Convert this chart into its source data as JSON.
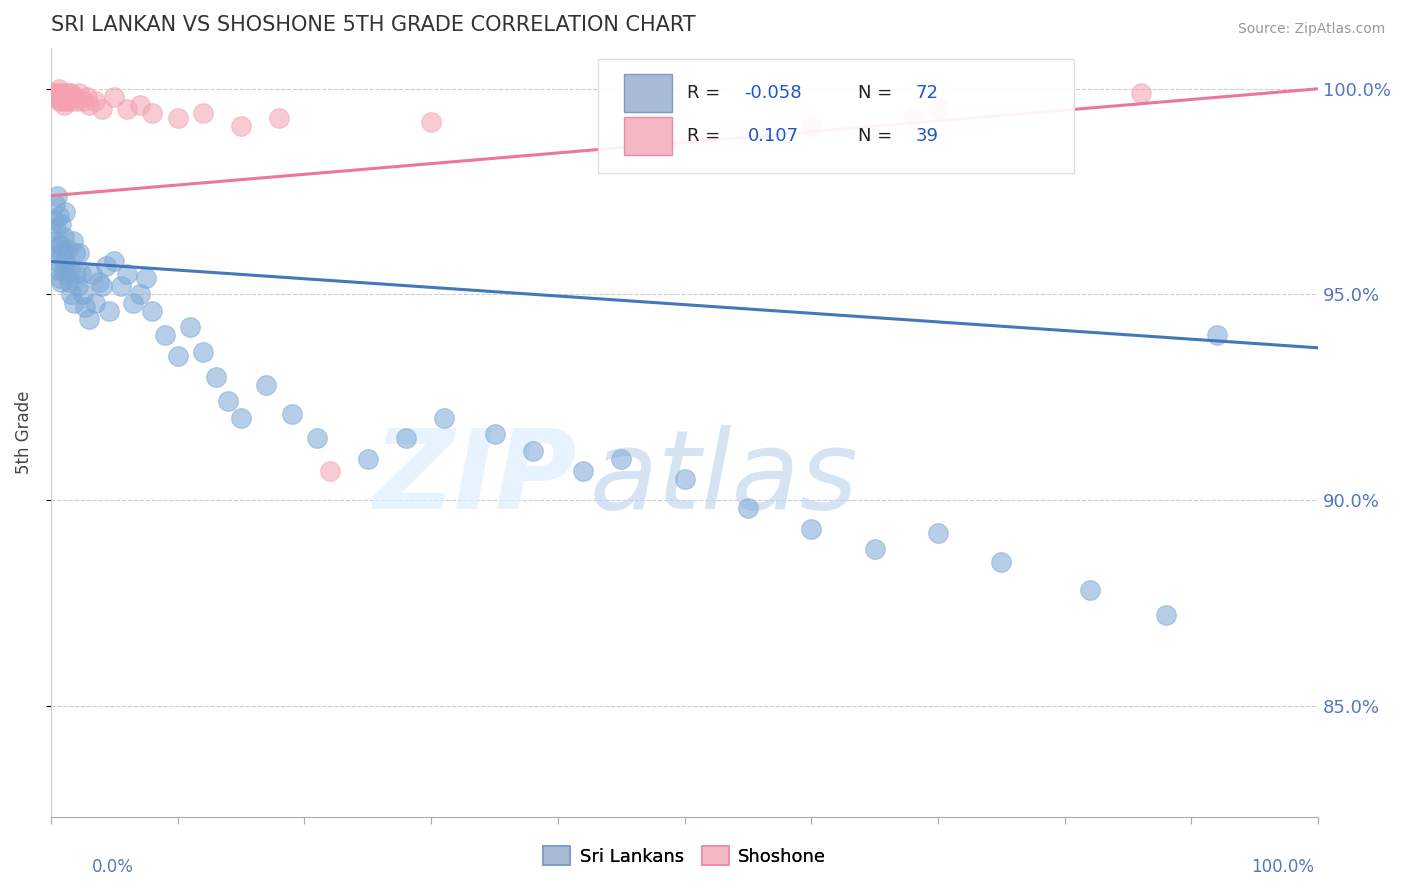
{
  "title": "SRI LANKAN VS SHOSHONE 5TH GRADE CORRELATION CHART",
  "source": "Source: ZipAtlas.com",
  "ylabel": "5th Grade",
  "xlim": [
    0.0,
    1.0
  ],
  "ylim": [
    0.823,
    1.01
  ],
  "sri_lankan_color": "#7BA7D4",
  "shoshone_color": "#F4A0B0",
  "sri_lankan_label": "Sri Lankans",
  "shoshone_label": "Shoshone",
  "sri_lankan_R": -0.058,
  "sri_lankan_N": 72,
  "shoshone_R": 0.107,
  "shoshone_N": 39,
  "right_yticklabels": [
    "85.0%",
    "90.0%",
    "95.0%",
    "100.0%"
  ],
  "right_yticks": [
    0.85,
    0.9,
    0.95,
    1.0
  ],
  "bg_color": "#FFFFFF",
  "grid_color": "#CCCCCC",
  "tick_color": "#5577BB",
  "title_color": "#333333",
  "sl_trend_y0": 0.958,
  "sl_trend_y1": 0.937,
  "sh_trend_y0": 0.974,
  "sh_trend_y1": 1.0,
  "legend_r1_color": "#3355BB",
  "legend_r2_color": "#3355BB",
  "watermark_zip_color": "#DDEEFF",
  "watermark_atlas_color": "#C8D8EE"
}
